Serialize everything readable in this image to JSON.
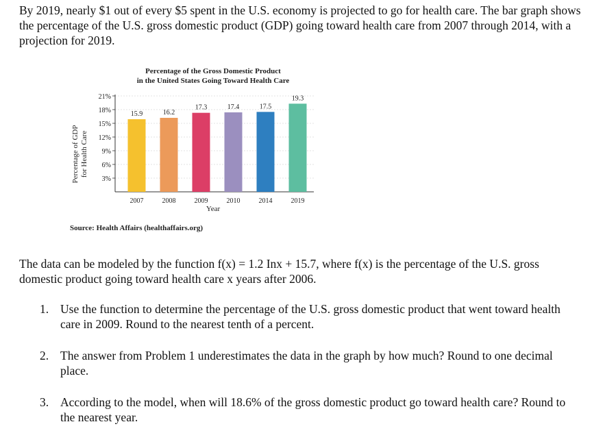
{
  "intro": "By 2019, nearly $1 out of every $5 spent in the U.S. economy is projected to go for health care. The bar graph shows the percentage of the U.S. gross domestic product (GDP) going toward health care from 2007 through 2014, with a projection for 2019.",
  "chart_data": {
    "type": "bar",
    "title_line1": "Percentage of the Gross Domestic Product",
    "title_line2": "in the United States Going Toward Health Care",
    "categories": [
      "2007",
      "2008",
      "2009",
      "2010",
      "2014",
      "2019"
    ],
    "values": [
      15.9,
      16.2,
      17.3,
      17.4,
      17.5,
      19.3
    ],
    "value_labels": [
      "15.9",
      "16.2",
      "17.3",
      "17.4",
      "17.5",
      "19.3"
    ],
    "colors": [
      "#f5c12e",
      "#ec9a5a",
      "#dc3e66",
      "#9b8fbf",
      "#2e7fc0",
      "#5dbea0"
    ],
    "xlabel": "Year",
    "ylabel_line1": "Percentage of GDP",
    "ylabel_line2": "for Health Care",
    "yticks": [
      3,
      6,
      9,
      12,
      15,
      18,
      21
    ],
    "ytick_labels": [
      "3%",
      "6%",
      "9%",
      "12%",
      "15%",
      "18%",
      "21%"
    ],
    "ylim": [
      0,
      21
    ],
    "source": "Source: Health Affairs (healthaffairs.org)"
  },
  "model": "The data can be modeled by the function f(x) = 1.2 Inx + 15.7, where f(x) is the percentage of the U.S. gross domestic product going toward health care x years after 2006.",
  "questions": [
    {
      "num": "1.",
      "text": "Use the function to determine the percentage of the U.S. gross domestic product that went toward health care in 2009.  Round to the nearest tenth of a percent."
    },
    {
      "num": "2.",
      "text": "The answer from Problem 1 underestimates the data in the graph by how much?  Round to one decimal place."
    },
    {
      "num": "3.",
      "text": "According to the model, when will 18.6% of the gross domestic product go toward health care?  Round to the nearest year."
    }
  ]
}
